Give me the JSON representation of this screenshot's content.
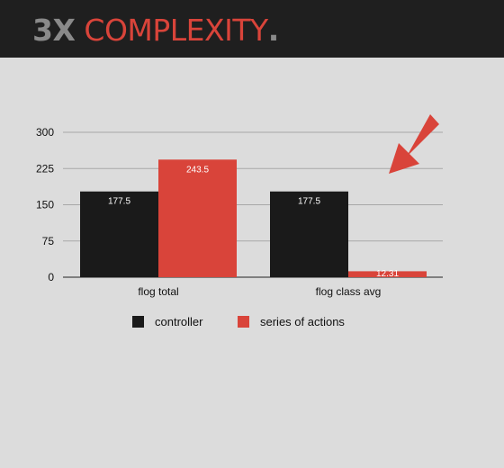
{
  "header": {
    "title_number": "3X",
    "title_word": "COMPLEXITY",
    "title_punct": "."
  },
  "colors": {
    "header_bg": "#1f1f1f",
    "accent_red": "#d9443a",
    "series_black": "#1a1a1a",
    "grid": "#a8a8a8",
    "background": "#dcdcdc"
  },
  "annotation": {
    "icon": "arrow-icon",
    "direction": "down-left"
  },
  "chart_data": {
    "type": "bar",
    "categories": [
      "flog total",
      "flog class avg"
    ],
    "series": [
      {
        "name": "controller",
        "values": [
          177.5,
          177.5
        ],
        "labels": [
          "177.5",
          "177.5"
        ],
        "color": "#1a1a1a"
      },
      {
        "name": "series of actions",
        "values": [
          243.5,
          12.31
        ],
        "labels": [
          "243.5",
          "12.31"
        ],
        "color": "#d9443a"
      }
    ],
    "y_ticks": [
      0,
      75,
      150,
      225,
      300
    ],
    "ylim": [
      0,
      300
    ],
    "grid": true,
    "legend_position": "bottom"
  }
}
